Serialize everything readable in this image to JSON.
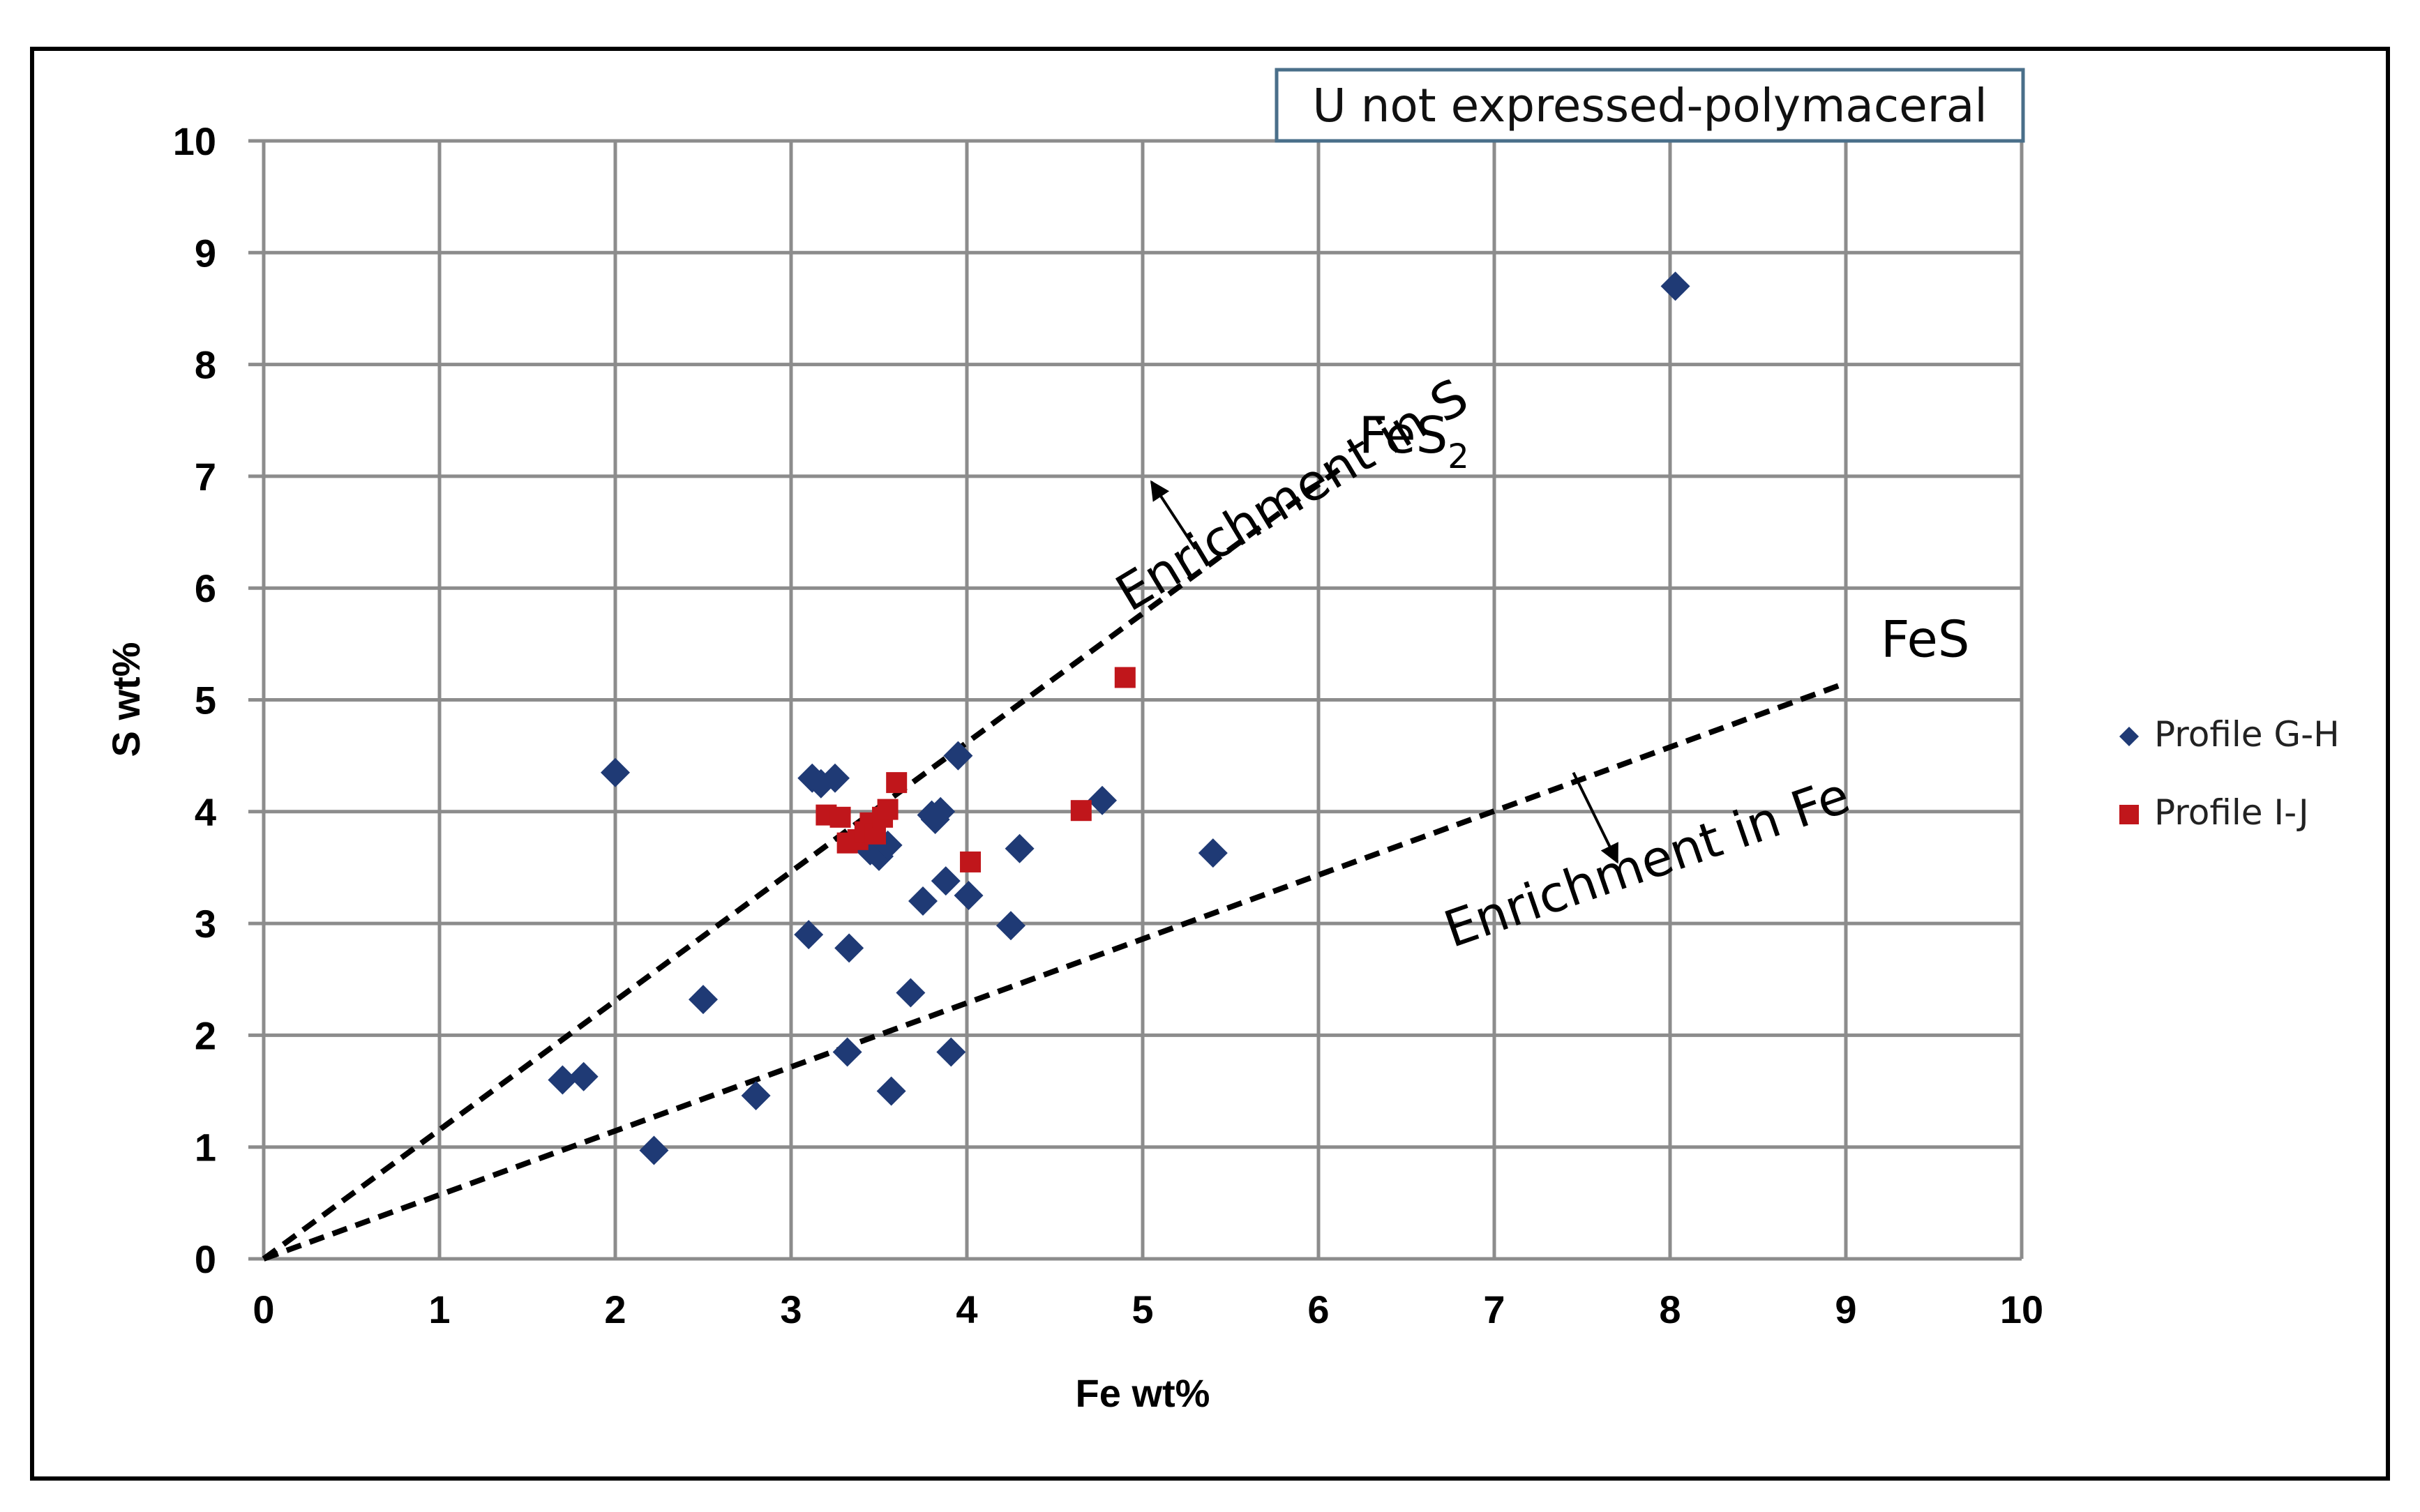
{
  "chart_data": {
    "type": "scatter",
    "title": "U not expressed-polymaceral",
    "xlabel": "Fe wt%",
    "ylabel": "S wt%",
    "xlim": [
      0,
      10
    ],
    "ylim": [
      0,
      10
    ],
    "xticks": [
      0,
      1,
      2,
      3,
      4,
      5,
      6,
      7,
      8,
      9,
      10
    ],
    "yticks": [
      0,
      1,
      2,
      3,
      4,
      5,
      6,
      7,
      8,
      9,
      10
    ],
    "grid": true,
    "legend_position": "right",
    "colors": {
      "series_gh": "#1f3a75",
      "series_ij": "#c0161b",
      "grid": "#8c8c8c"
    },
    "series": [
      {
        "name": "Profile G-H",
        "marker": "diamond",
        "points": [
          [
            1.7,
            1.6
          ],
          [
            1.82,
            1.63
          ],
          [
            2.0,
            4.35
          ],
          [
            2.22,
            0.97
          ],
          [
            2.5,
            2.32
          ],
          [
            2.8,
            1.46
          ],
          [
            3.1,
            2.9
          ],
          [
            3.12,
            4.3
          ],
          [
            3.17,
            4.25
          ],
          [
            3.25,
            4.3
          ],
          [
            3.32,
            1.85
          ],
          [
            3.33,
            2.78
          ],
          [
            3.45,
            3.65
          ],
          [
            3.5,
            3.6
          ],
          [
            3.55,
            3.7
          ],
          [
            3.57,
            1.5
          ],
          [
            3.68,
            2.38
          ],
          [
            3.75,
            3.2
          ],
          [
            3.8,
            3.97
          ],
          [
            3.82,
            3.93
          ],
          [
            3.85,
            4.0
          ],
          [
            3.88,
            3.38
          ],
          [
            3.91,
            1.85
          ],
          [
            3.95,
            4.5
          ],
          [
            4.01,
            3.25
          ],
          [
            4.25,
            2.98
          ],
          [
            4.3,
            3.67
          ],
          [
            4.77,
            4.1
          ],
          [
            5.4,
            3.63
          ],
          [
            8.03,
            8.7
          ]
        ]
      },
      {
        "name": "Profile I-J",
        "marker": "square",
        "points": [
          [
            3.2,
            3.97
          ],
          [
            3.28,
            3.95
          ],
          [
            3.32,
            3.72
          ],
          [
            3.38,
            3.75
          ],
          [
            3.42,
            3.82
          ],
          [
            3.45,
            3.9
          ],
          [
            3.48,
            3.8
          ],
          [
            3.52,
            3.95
          ],
          [
            3.55,
            4.02
          ],
          [
            3.6,
            4.26
          ],
          [
            4.02,
            3.55
          ],
          [
            4.65,
            4.01
          ],
          [
            4.9,
            5.2
          ]
        ]
      }
    ],
    "reference_lines": [
      {
        "label": "FeS",
        "label_sub": "2",
        "from": [
          0,
          0
        ],
        "to": [
          6.15,
          7.1
        ]
      },
      {
        "label": "FeS",
        "label_sub": "",
        "from": [
          0,
          0
        ],
        "to": [
          9.0,
          5.15
        ]
      }
    ],
    "annotations": [
      {
        "text": "Enrichment in S",
        "at": [
          5.9,
          6.7
        ],
        "rotation": -31
      },
      {
        "text": "Enrichment in Fe",
        "at": [
          7.9,
          3.4
        ],
        "rotation": -19
      }
    ],
    "arrows": [
      {
        "from": [
          5.3,
          6.35
        ],
        "to": [
          5.05,
          6.95
        ]
      },
      {
        "from": [
          7.45,
          4.35
        ],
        "to": [
          7.7,
          3.55
        ]
      }
    ]
  }
}
